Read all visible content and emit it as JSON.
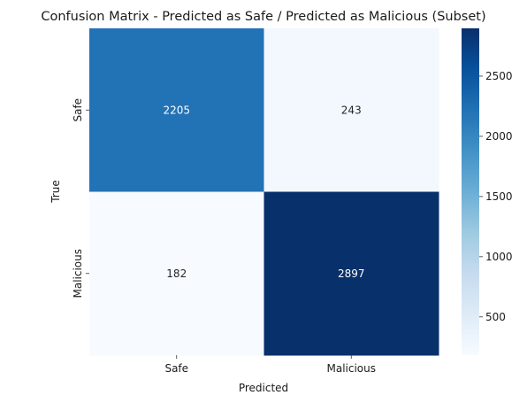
{
  "chart_data": {
    "type": "heatmap",
    "title": "Confusion Matrix - Predicted as Safe / Predicted as Malicious (Subset)",
    "xlabel": "Predicted",
    "ylabel": "True",
    "x_categories": [
      "Safe",
      "Malicious"
    ],
    "y_categories": [
      "Safe",
      "Malicious"
    ],
    "values": [
      [
        2205,
        243
      ],
      [
        182,
        2897
      ]
    ],
    "colormap": "Blues",
    "colorbar": {
      "range": [
        182,
        2897
      ],
      "ticks": [
        500,
        1000,
        1500,
        2000,
        2500
      ]
    },
    "grid": false
  }
}
